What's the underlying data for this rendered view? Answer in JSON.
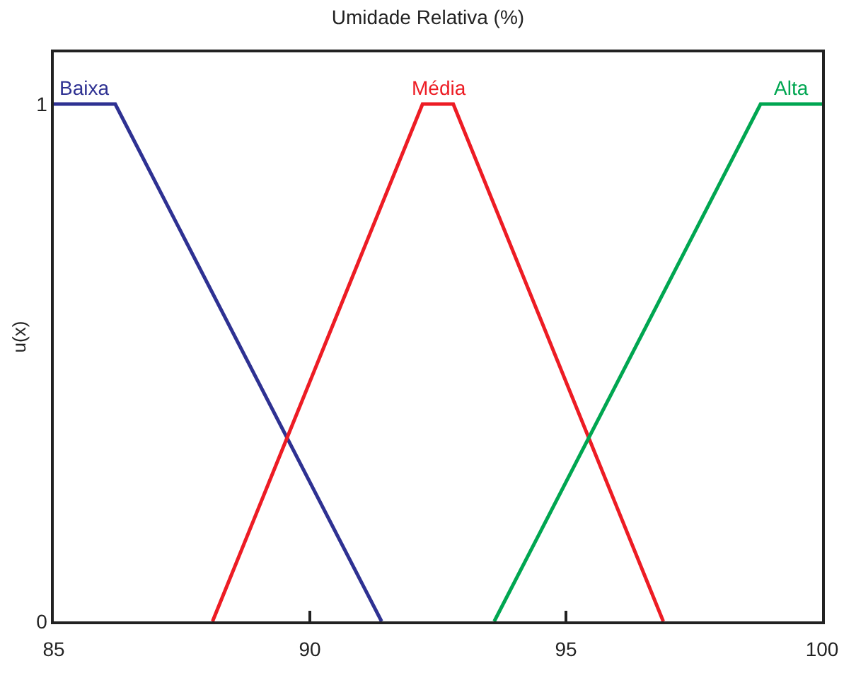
{
  "chart_data": {
    "type": "line",
    "title": "Umidade Relativa (%)",
    "ylabel": "u(x)",
    "xlim": [
      85,
      100
    ],
    "ylim": [
      0,
      1.1
    ],
    "xticks": [
      85,
      90,
      95,
      100
    ],
    "yticks": [
      0,
      1
    ],
    "legend": false,
    "marker": "none",
    "line_style": "solid",
    "series": [
      {
        "name": "Baixa",
        "color": "#2e3192",
        "x": [
          85,
          86.2,
          91.4
        ],
        "values": [
          1,
          1,
          0
        ]
      },
      {
        "name": "Média",
        "color": "#ed1c24",
        "x": [
          88.1,
          92.2,
          92.8,
          96.9
        ],
        "values": [
          0,
          1,
          1,
          0
        ]
      },
      {
        "name": "Alta",
        "color": "#00a651",
        "x": [
          93.6,
          98.8,
          100
        ],
        "values": [
          0,
          1,
          1
        ]
      }
    ]
  }
}
